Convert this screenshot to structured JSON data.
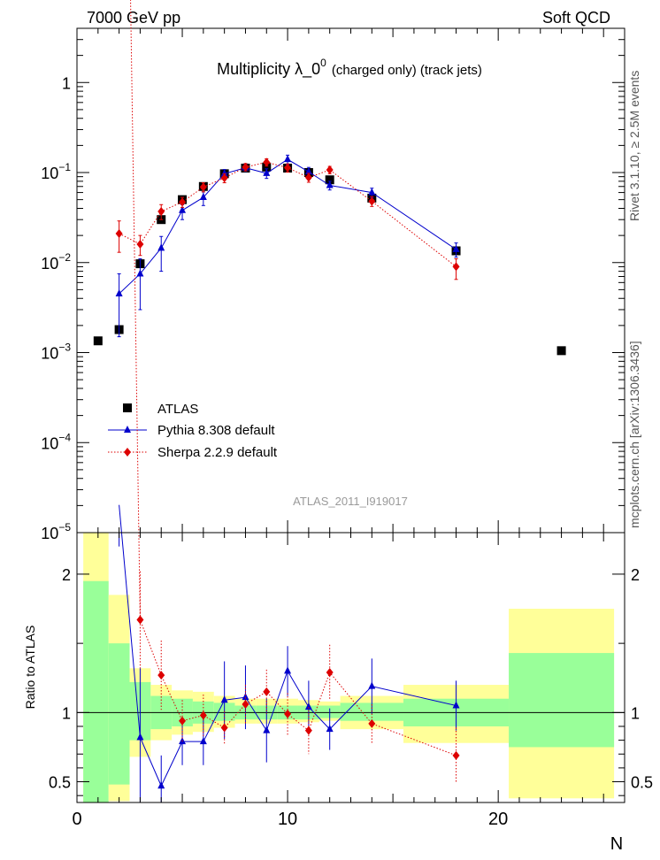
{
  "header": {
    "energy_label": "7000 GeV pp",
    "process_label": "Soft QCD"
  },
  "side_labels": {
    "rivet": "Rivet 3.1.10, ≥ 2.5M events",
    "mcplots": "mcplots.cern.ch [arXiv:1306.3436]"
  },
  "chart_data": {
    "type": "scatter",
    "title_main": "Multiplicity  λ_0",
    "title_sup": "0",
    "title_detail": "(charged only) (track jets)",
    "analysis_id": "ATLAS_2011_I919017",
    "xlabel": "N",
    "ratio_ylabel": "Ratio to ATLAS",
    "xlim": [
      0,
      26
    ],
    "ylim_main": [
      1e-05,
      4
    ],
    "yscale_main": "log",
    "ylim_ratio": [
      0.35,
      2.3
    ],
    "x_ticks": [
      0,
      10,
      20
    ],
    "y_ticks_main": [
      {
        "value": 1,
        "base": "1",
        "exp": ""
      },
      {
        "value": 0.1,
        "base": "10",
        "exp": "−1"
      },
      {
        "value": 0.01,
        "base": "10",
        "exp": "−2"
      },
      {
        "value": 0.001,
        "base": "10",
        "exp": "−3"
      },
      {
        "value": 0.0001,
        "base": "10",
        "exp": "−4"
      },
      {
        "value": 1e-05,
        "base": "10",
        "exp": "−5"
      }
    ],
    "y_ticks_ratio": [
      {
        "value": 0.5,
        "label": "0.5"
      },
      {
        "value": 1,
        "label": "1"
      },
      {
        "value": 2,
        "label": "2"
      }
    ],
    "legend_position": "bottom-left",
    "series": [
      {
        "name": "ATLAS",
        "style": "square",
        "color": "#000000",
        "x": [
          1,
          2,
          3,
          4,
          5,
          6,
          7,
          8,
          9,
          10,
          11,
          12,
          14,
          18,
          23
        ],
        "y": [
          0.00135,
          0.0018,
          0.0097,
          0.03,
          0.05,
          0.07,
          0.097,
          0.112,
          0.115,
          0.112,
          0.1,
          0.083,
          0.052,
          0.0135,
          0.00105
        ]
      },
      {
        "name": "Pythia 8.308 default",
        "style": "triangle-line",
        "color": "#0000cc",
        "x": [
          2,
          3,
          4,
          5,
          6,
          7,
          8,
          9,
          10,
          11,
          12,
          14,
          18
        ],
        "y": [
          0.0045,
          0.0075,
          0.0145,
          0.038,
          0.053,
          0.097,
          0.113,
          0.098,
          0.14,
          0.102,
          0.072,
          0.06,
          0.014
        ],
        "err_up": [
          0.003,
          0.0035,
          0.005,
          0.006,
          0.008,
          0.011,
          0.01,
          0.012,
          0.016,
          0.012,
          0.008,
          0.007,
          0.0025
        ],
        "err_down": [
          0.003,
          0.0045,
          0.0065,
          0.008,
          0.01,
          0.013,
          0.01,
          0.012,
          0.017,
          0.012,
          0.008,
          0.007,
          0.0025
        ],
        "ratio": [
          2.5,
          0.82,
          0.47,
          0.79,
          0.79,
          1.09,
          1.11,
          0.87,
          1.3,
          1.04,
          0.88,
          1.19,
          1.05
        ],
        "ratio_err": [
          0.3,
          0.5,
          0.22,
          0.17,
          0.17,
          0.28,
          0.23,
          0.23,
          0.18,
          0.19,
          0.15,
          0.2,
          0.18
        ]
      },
      {
        "name": "Sherpa 2.2.9 default",
        "style": "diamond-dotted",
        "color": "#dd0000",
        "x": [
          2,
          3,
          4,
          5,
          6,
          7,
          8,
          9,
          10,
          11,
          12,
          14,
          18
        ],
        "y": [
          0.021,
          0.016,
          0.037,
          0.047,
          0.069,
          0.087,
          0.115,
          0.13,
          0.113,
          0.088,
          0.107,
          0.048,
          0.009
        ],
        "err_up": [
          0.008,
          0.004,
          0.007,
          0.006,
          0.008,
          0.01,
          0.011,
          0.012,
          0.012,
          0.01,
          0.01,
          0.006,
          0.002
        ],
        "err_down": [
          0.008,
          0.004,
          0.007,
          0.006,
          0.008,
          0.01,
          0.011,
          0.012,
          0.012,
          0.01,
          0.01,
          0.006,
          0.0025
        ],
        "ratio": [
          11.5,
          1.67,
          1.27,
          0.94,
          0.98,
          0.89,
          1.06,
          1.15,
          0.99,
          0.87,
          1.29,
          0.92,
          0.69
        ],
        "ratio_err": [
          3.0,
          0.35,
          0.25,
          0.15,
          0.15,
          0.12,
          0.14,
          0.16,
          0.15,
          0.17,
          0.2,
          0.14,
          0.2
        ]
      }
    ],
    "ratio_bands": [
      {
        "x0": 0.3,
        "x1": 1.5,
        "yellow": [
          0.1,
          2.3
        ],
        "green": [
          0.3,
          1.95
        ]
      },
      {
        "x0": 1.5,
        "x1": 2.5,
        "yellow": [
          0.36,
          1.85
        ],
        "green": [
          0.48,
          1.5
        ]
      },
      {
        "x0": 2.5,
        "x1": 3.5,
        "yellow": [
          0.68,
          1.32
        ],
        "green": [
          0.8,
          1.22
        ]
      },
      {
        "x0": 3.5,
        "x1": 4.5,
        "yellow": [
          0.8,
          1.2
        ],
        "green": [
          0.88,
          1.12
        ]
      },
      {
        "x0": 4.5,
        "x1": 5.5,
        "yellow": [
          0.84,
          1.16
        ],
        "green": [
          0.9,
          1.1
        ]
      },
      {
        "x0": 5.5,
        "x1": 6.5,
        "yellow": [
          0.86,
          1.15
        ],
        "green": [
          0.92,
          1.08
        ]
      },
      {
        "x0": 6.5,
        "x1": 7.5,
        "yellow": [
          0.89,
          1.12
        ],
        "green": [
          0.94,
          1.07
        ]
      },
      {
        "x0": 7.5,
        "x1": 8.5,
        "yellow": [
          0.92,
          1.1
        ],
        "green": [
          0.95,
          1.05
        ]
      },
      {
        "x0": 8.5,
        "x1": 9.5,
        "yellow": [
          0.92,
          1.1
        ],
        "green": [
          0.95,
          1.05
        ]
      },
      {
        "x0": 9.5,
        "x1": 10.5,
        "yellow": [
          0.92,
          1.1
        ],
        "green": [
          0.95,
          1.05
        ]
      },
      {
        "x0": 10.5,
        "x1": 11.5,
        "yellow": [
          0.93,
          1.09
        ],
        "green": [
          0.95,
          1.05
        ]
      },
      {
        "x0": 11.5,
        "x1": 12.5,
        "yellow": [
          0.94,
          1.08
        ],
        "green": [
          0.96,
          1.05
        ]
      },
      {
        "x0": 12.5,
        "x1": 15.5,
        "yellow": [
          0.88,
          1.12
        ],
        "green": [
          0.94,
          1.07
        ]
      },
      {
        "x0": 15.5,
        "x1": 20.5,
        "yellow": [
          0.78,
          1.2
        ],
        "green": [
          0.9,
          1.1
        ]
      },
      {
        "x0": 20.5,
        "x1": 25.5,
        "yellow": [
          0.38,
          1.75
        ],
        "green": [
          0.75,
          1.43
        ]
      }
    ]
  }
}
